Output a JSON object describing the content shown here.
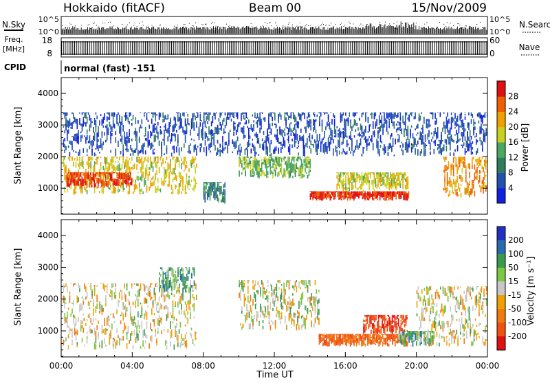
{
  "header": {
    "station": "Hokkaido (fitACF)",
    "beam": "Beam 00",
    "date": "15/Nov/2009"
  },
  "strip_labels": {
    "nsky": "N.Sky",
    "nsearch": "N.Search",
    "freq_line1": "Freq.",
    "freq_line2": "[MHz]",
    "nave": "Nave",
    "cpid": "CPID",
    "cpid_value": "normal (fast) -151",
    "nsky_tick_hi": "10^5",
    "nsky_tick_lo": "10^0",
    "freq_tick_hi": "18",
    "freq_tick_lo": "8",
    "nave_tick_hi": "60",
    "nave_tick_lo": "0"
  },
  "x_axis": {
    "label": "Time UT",
    "ticks": [
      "00:00",
      "04:00",
      "08:00",
      "12:00",
      "16:00",
      "20:00",
      "00:00"
    ],
    "hours": [
      0,
      4,
      8,
      12,
      16,
      20,
      24
    ]
  },
  "power_panel": {
    "ylabel": "Slant Range [km]",
    "yticks": [
      1000,
      2000,
      3000,
      4000
    ],
    "colorbar_label": "Power [dB]",
    "colorbar_ticks": [
      "4",
      "8",
      "12",
      "16",
      "20",
      "24",
      "28"
    ]
  },
  "velocity_panel": {
    "ylabel": "Slant Range [km]",
    "yticks": [
      1000,
      2000,
      3000,
      4000
    ],
    "colorbar_label": "Velocity [m s⁻¹]",
    "colorbar_ticks": [
      "200",
      "100",
      "50",
      "15",
      "-15",
      "-50",
      "-100",
      "-200"
    ]
  },
  "chart_data": [
    {
      "type": "heatmap",
      "title": "Power",
      "xlabel": "Time UT",
      "ylabel": "Slant Range [km]",
      "xlim": [
        0,
        24
      ],
      "ylim": [
        180,
        4500
      ],
      "colorbar": {
        "label": "Power [dB]",
        "range": [
          0,
          30
        ]
      },
      "regions": [
        {
          "t": [
            0.1,
            7.6
          ],
          "r": [
            800,
            2000
          ],
          "level": 18
        },
        {
          "t": [
            0.3,
            4.0
          ],
          "r": [
            1000,
            1500
          ],
          "level": 26
        },
        {
          "t": [
            8.0,
            9.2
          ],
          "r": [
            500,
            1200
          ],
          "level": 10
        },
        {
          "t": [
            10.0,
            14.0
          ],
          "r": [
            1300,
            2000
          ],
          "level": 14
        },
        {
          "t": [
            14.0,
            19.6
          ],
          "r": [
            600,
            900
          ],
          "level": 27
        },
        {
          "t": [
            15.5,
            19.5
          ],
          "r": [
            900,
            1500
          ],
          "level": 17
        },
        {
          "t": [
            21.5,
            24.0
          ],
          "r": [
            700,
            2000
          ],
          "level": 22
        },
        {
          "t": [
            0.1,
            24.0
          ],
          "r": [
            2000,
            3400
          ],
          "level": 5
        }
      ]
    },
    {
      "type": "heatmap",
      "title": "Velocity",
      "xlabel": "Time UT",
      "ylabel": "Slant Range [km]",
      "xlim": [
        0,
        24
      ],
      "ylim": [
        180,
        4500
      ],
      "colorbar": {
        "label": "Velocity [m s⁻¹]",
        "range": [
          -250,
          250
        ]
      },
      "regions": [
        {
          "t": [
            0.1,
            7.6
          ],
          "r": [
            400,
            2500
          ],
          "level": 0
        },
        {
          "t": [
            5.5,
            7.5
          ],
          "r": [
            2200,
            3000
          ],
          "level": 50
        },
        {
          "t": [
            10.0,
            14.5
          ],
          "r": [
            1000,
            2600
          ],
          "level": 0
        },
        {
          "t": [
            14.5,
            19.5
          ],
          "r": [
            500,
            900
          ],
          "level": -80
        },
        {
          "t": [
            17.0,
            19.5
          ],
          "r": [
            900,
            1500
          ],
          "level": -140
        },
        {
          "t": [
            19.0,
            21.0
          ],
          "r": [
            500,
            1000
          ],
          "level": 40
        },
        {
          "t": [
            20.0,
            24.0
          ],
          "r": [
            500,
            2400
          ],
          "level": 0
        }
      ]
    }
  ]
}
